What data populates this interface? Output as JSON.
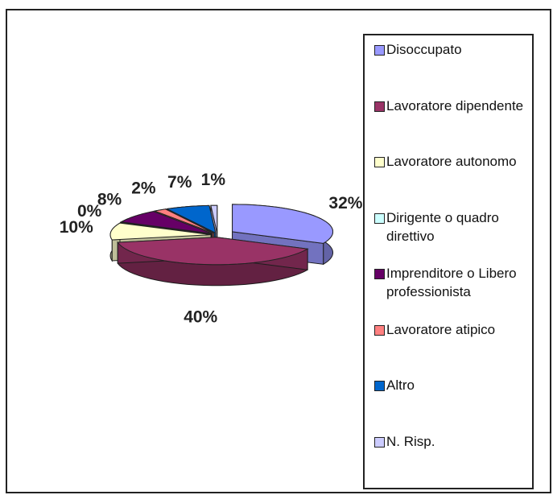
{
  "chart_data": {
    "type": "pie3d",
    "categories": [
      "Disoccupato",
      "Lavoratore dipendente",
      "Lavoratore autonomo",
      "Dirigente o quadro direttivo",
      "Imprenditore o Libero professionista",
      "Lavoratore atipico",
      "Altro",
      "N. Risp."
    ],
    "values": [
      32,
      40,
      10,
      0,
      8,
      2,
      7,
      1
    ],
    "value_labels": [
      "32%",
      "40%",
      "10%",
      "0%",
      "8%",
      "2%",
      "7%",
      "1%"
    ],
    "colors": [
      "#9999ff",
      "#993366",
      "#ffffcc",
      "#ccffff",
      "#660066",
      "#ff8080",
      "#0066cc",
      "#ccccff"
    ],
    "legend": "right"
  }
}
